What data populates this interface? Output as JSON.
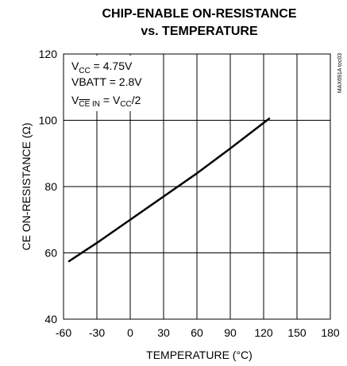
{
  "chart_data": {
    "type": "line",
    "title_line1": "CHIP-ENABLE ON-RESISTANCE",
    "title_line2": "vs. TEMPERATURE",
    "xlabel": "TEMPERATURE (°C)",
    "ylabel": "CE ON-RESISTANCE (Ω)",
    "xlim": [
      -60,
      180
    ],
    "ylim": [
      40,
      120
    ],
    "x_ticks": [
      "-60",
      "-30",
      "0",
      "30",
      "60",
      "90",
      "120",
      "150",
      "180"
    ],
    "y_ticks": [
      "40",
      "60",
      "80",
      "100",
      "120"
    ],
    "grid": true,
    "series": [
      {
        "x": [
          -55,
          -30,
          0,
          30,
          60,
          90,
          125
        ],
        "y": [
          57.5,
          63.0,
          70.0,
          77.0,
          84.0,
          91.5,
          100.5
        ]
      }
    ],
    "annotations": {
      "vcc": {
        "main": "V",
        "sub": "CC",
        "rest": " = 4.75V"
      },
      "vbatt": "VBATT = 2.8V",
      "vce": {
        "v": "V",
        "overline": "CE",
        "sub_rest": " IN",
        "eq": " = V",
        "sub_cc": "CC",
        "tail": "/2"
      }
    },
    "code": "MAX691A toc03",
    "line_color": "#000000",
    "grid_color": "#000000"
  }
}
